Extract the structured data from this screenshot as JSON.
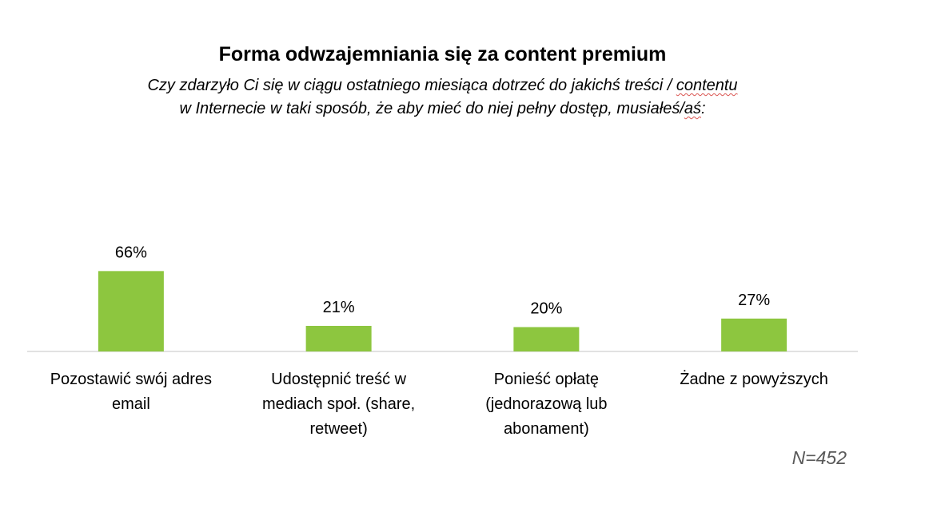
{
  "chart_data": {
    "type": "bar",
    "title": "Forma odwzajemniania się za content premium",
    "subtitle_line1_part1": "Czy zdarzyło Ci się w ciągu ostatniego miesiąca dotrzeć do jakichś treści / ",
    "subtitle_line1_part2": "contentu",
    "subtitle_line2_part1": "w Internecie w taki sposób, że aby mieć do niej pełny dostęp, musiałeś/",
    "subtitle_line2_part2": "aś",
    "subtitle_line2_part3": ":",
    "categories": [
      [
        "Pozostawić swój adres",
        "email"
      ],
      [
        "Udostępnić treść w",
        "mediach społ. (share,",
        "retweet)"
      ],
      [
        "Ponieść opłatę",
        "(jednorazową lub",
        "abonament)"
      ],
      [
        "Żadne z powyższych"
      ]
    ],
    "values": [
      66,
      21,
      20,
      27
    ],
    "value_labels": [
      "66%",
      "21%",
      "20%",
      "27%"
    ],
    "ylim": [
      0,
      100
    ],
    "grid": false,
    "legend": "none",
    "bar_color": "#8dc63f",
    "axis_color": "#d9d9d9",
    "note": "N=452"
  }
}
